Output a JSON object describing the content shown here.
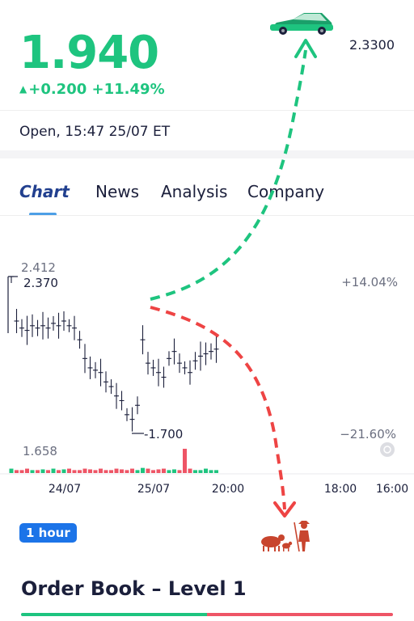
{
  "quote": {
    "price": "1.940",
    "change": "+0.200",
    "change_pct": "+11.49%",
    "ref_price": "2.3300",
    "status": "Open, 15:47 25/07 ET"
  },
  "tabs": [
    {
      "label": "Chart",
      "active": true
    },
    {
      "label": "News",
      "active": false
    },
    {
      "label": "Analysis",
      "active": false
    },
    {
      "label": "Company",
      "active": false
    }
  ],
  "chart": {
    "price_labels": {
      "top": "2.412",
      "high": "2.370",
      "low": "-1.700",
      "volume_max": "1.658"
    },
    "pct_labels": {
      "top": "+14.04%",
      "bottom": "−21.60%"
    },
    "x_labels": [
      "24/07",
      "25/07",
      "20:00",
      "18:00",
      "16:00"
    ],
    "interval": "1 hour"
  },
  "chart_data": {
    "type": "candlestick",
    "x_ticks": [
      "24/07",
      "25/07",
      "20:00",
      "18:00",
      "16:00"
    ],
    "y_labels": [
      "2.412",
      "2.370",
      "-1.700",
      "1.658"
    ],
    "right_labels": [
      "+14.04%",
      "−21.60%"
    ],
    "series": [
      {
        "values": [
          2.37,
          2.18,
          2.15,
          2.14,
          2.16,
          2.15,
          2.16,
          2.15,
          2.17,
          2.16,
          2.18,
          2.16,
          2.15,
          2.1,
          2.02,
          1.98,
          1.97,
          1.96,
          1.92,
          1.9,
          1.86,
          1.84,
          1.78,
          1.76,
          1.82,
          2.1,
          2.0,
          1.98,
          1.96,
          1.94,
          2.02,
          2.05,
          2.0,
          1.98,
          1.96,
          2.01,
          2.03,
          2.04,
          2.05,
          2.06
        ]
      }
    ],
    "volume": [
      0.3,
      0.2,
      0.2,
      0.3,
      0.2,
      0.2,
      0.25,
      0.2,
      0.3,
      0.2,
      0.25,
      0.3,
      0.2,
      0.2,
      0.3,
      0.25,
      0.2,
      0.3,
      0.2,
      0.2,
      0.3,
      0.25,
      0.2,
      0.3,
      0.2,
      0.35,
      0.3,
      0.2,
      0.25,
      0.3,
      0.2,
      0.25,
      0.2,
      1.658,
      0.3,
      0.2,
      0.2,
      0.3,
      0.2,
      0.2
    ]
  },
  "order_book": {
    "title": "Order Book – Level 1"
  },
  "colors": {
    "up": "#1ec47f",
    "down": "#ee5566",
    "accent": "#22408f",
    "pill": "#1c74e8",
    "arrow_up": "#1ec47f",
    "arrow_down": "#ee4444"
  },
  "icons": {
    "car": "car-icon",
    "farmer": "farmer-with-animals-icon"
  }
}
